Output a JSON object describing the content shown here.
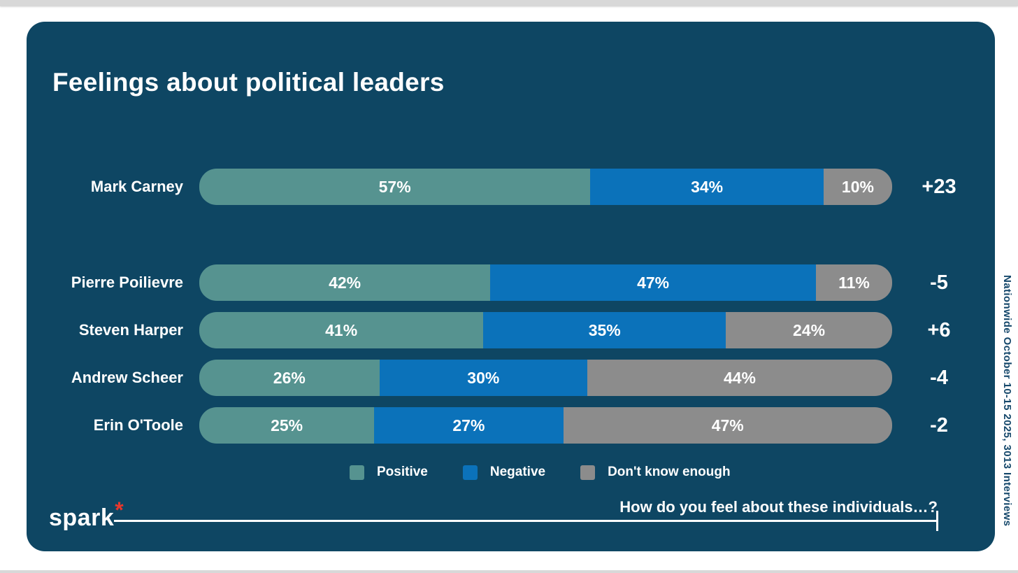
{
  "page": {
    "brand": "spark",
    "brand_mark": "*",
    "question": "How do you feel about these individuals…?",
    "source_note": "Nationwide October 10-15 2025, 3013 Interviews"
  },
  "chart_data": {
    "type": "bar",
    "orientation": "horizontal-stacked",
    "title": "Feelings about political leaders",
    "xlim": [
      0,
      100
    ],
    "value_suffix": "%",
    "legend_position": "bottom",
    "legend": [
      "Positive",
      "Negative",
      "Don't know enough"
    ],
    "colors": {
      "positive": "#569390",
      "negative": "#0b72ba",
      "dont_know": "#8c8c8c"
    },
    "series_names": [
      "Positive",
      "Negative",
      "Don't know enough"
    ],
    "rows": [
      {
        "label": "Mark Carney",
        "values": [
          57,
          34,
          10
        ],
        "net": "+23"
      },
      {
        "label": "Pierre Poilievre",
        "values": [
          42,
          47,
          11
        ],
        "net": "-5"
      },
      {
        "label": "Steven Harper",
        "values": [
          41,
          35,
          24
        ],
        "net": "+6"
      },
      {
        "label": "Andrew Scheer",
        "values": [
          26,
          30,
          44
        ],
        "net": "-4"
      },
      {
        "label": "Erin O'Toole",
        "values": [
          25,
          27,
          47
        ],
        "net": "-2"
      }
    ]
  },
  "theme": {
    "card_background": "#0e4663",
    "text_color": "#ffffff",
    "accent_red": "#e8372c"
  }
}
